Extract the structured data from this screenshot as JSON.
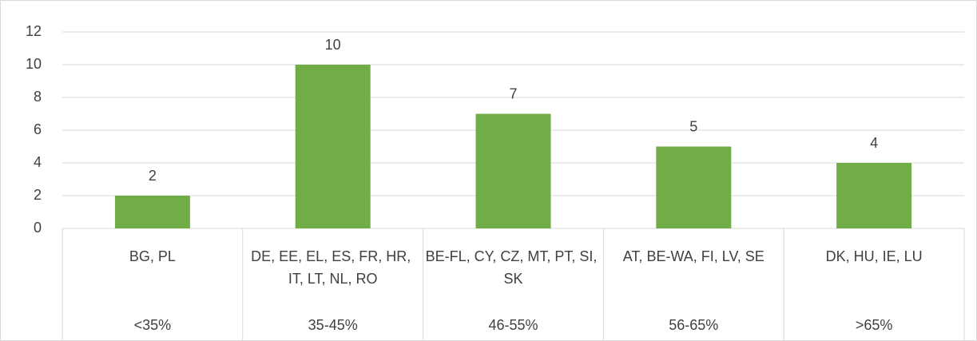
{
  "chart_data": {
    "type": "bar",
    "categories": [
      "<35%",
      "35-45%",
      "46-55%",
      "56-65%",
      ">65%"
    ],
    "category_members": [
      "BG, PL",
      "DE, EE, EL, ES, FR, HR, IT, LT, NL, RO",
      "BE-FL, CY, CZ, MT, PT, SI, SK",
      "AT, BE-WA, FI, LV, SE",
      "DK, HU, IE, LU"
    ],
    "values": [
      2,
      10,
      7,
      5,
      4
    ],
    "color": "#70ad47",
    "ylim": [
      0,
      12
    ],
    "yticks": [
      0,
      2,
      4,
      6,
      8,
      10,
      12
    ],
    "grid": true
  }
}
